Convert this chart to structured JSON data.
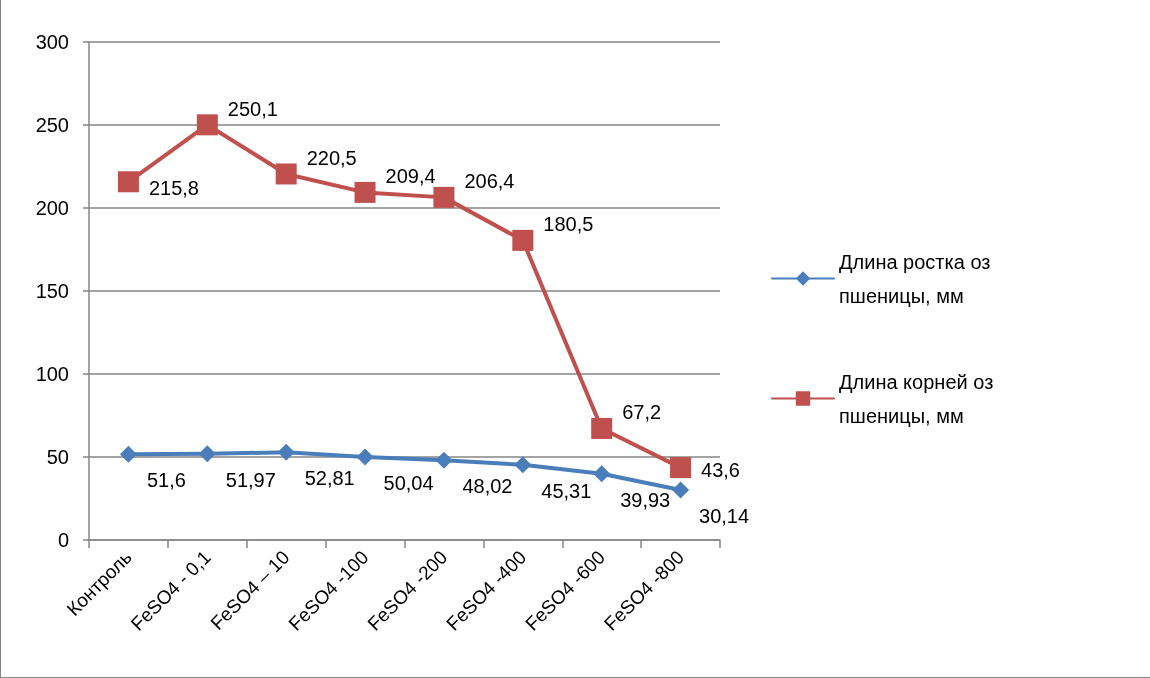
{
  "chart_data": {
    "type": "line",
    "categories": [
      "Контроль",
      "FeSO4 - 0,1",
      "FeSO4 – 10",
      "FeSO4 -100",
      "FeSO4 -200",
      "FeSO4 -400",
      "FeSO4 -600",
      "FeSO4 -800"
    ],
    "ylim": [
      0,
      300
    ],
    "yticks": [
      0,
      50,
      100,
      150,
      200,
      250,
      300
    ],
    "grid": "y",
    "legend": "right",
    "line_style": "solid",
    "series": [
      {
        "name": "Длина ростка оз пшеницы, мм",
        "color": "#4a7ebb",
        "marker": "diamond",
        "values": [
          51.6,
          51.97,
          52.81,
          50.04,
          48.02,
          45.31,
          39.93,
          30.14
        ],
        "value_labels": [
          "51,6",
          "51,97",
          "52,81",
          "50,04",
          "48,02",
          "45,31",
          "39,93",
          "30,14"
        ]
      },
      {
        "name": "Длина корней оз пшеницы, мм",
        "color": "#c0504d",
        "marker": "square",
        "values": [
          215.8,
          250.1,
          220.5,
          209.4,
          206.4,
          180.5,
          67.2,
          43.6
        ],
        "value_labels": [
          "215,8",
          "250,1",
          "220,5",
          "209,4",
          "206,4",
          "180,5",
          "67,2",
          "43,6"
        ]
      }
    ]
  }
}
